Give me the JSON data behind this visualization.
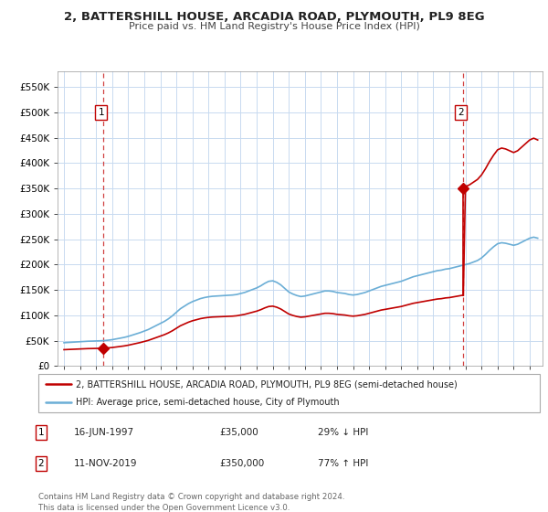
{
  "title": "2, BATTERSHILL HOUSE, ARCADIA ROAD, PLYMOUTH, PL9 8EG",
  "subtitle": "Price paid vs. HM Land Registry's House Price Index (HPI)",
  "background_color": "#ffffff",
  "plot_bg_color": "#ffffff",
  "grid_color": "#c8daf0",
  "ylabel_values": [
    "£0",
    "£50K",
    "£100K",
    "£150K",
    "£200K",
    "£250K",
    "£300K",
    "£350K",
    "£400K",
    "£450K",
    "£500K",
    "£550K"
  ],
  "yticks": [
    0,
    50000,
    100000,
    150000,
    200000,
    250000,
    300000,
    350000,
    400000,
    450000,
    500000,
    550000
  ],
  "ylim": [
    0,
    580000
  ],
  "xlim_start": 1994.6,
  "xlim_end": 2024.8,
  "xticks": [
    1995,
    1996,
    1997,
    1998,
    1999,
    2000,
    2001,
    2002,
    2003,
    2004,
    2005,
    2006,
    2007,
    2008,
    2009,
    2010,
    2011,
    2012,
    2013,
    2014,
    2015,
    2016,
    2017,
    2018,
    2019,
    2020,
    2021,
    2022,
    2023,
    2024
  ],
  "hpi_line_color": "#6baed6",
  "price_line_color": "#c00000",
  "dashed_vline_color": "#d04040",
  "transaction1_x": 1997.46,
  "transaction1_y": 35000,
  "transaction2_x": 2019.87,
  "transaction2_y": 350000,
  "legend_label1": "2, BATTERSHILL HOUSE, ARCADIA ROAD, PLYMOUTH, PL9 8EG (semi-detached house)",
  "legend_label2": "HPI: Average price, semi-detached house, City of Plymouth",
  "annotation1_label": "1",
  "annotation2_label": "2",
  "note1_index": "1",
  "note1_date": "16-JUN-1997",
  "note1_price": "£35,000",
  "note1_hpi": "29% ↓ HPI",
  "note2_index": "2",
  "note2_date": "11-NOV-2019",
  "note2_price": "£350,000",
  "note2_hpi": "77% ↑ HPI",
  "footer": "Contains HM Land Registry data © Crown copyright and database right 2024.\nThis data is licensed under the Open Government Licence v3.0.",
  "hpi_years": [
    1995.0,
    1995.25,
    1995.5,
    1995.75,
    1996.0,
    1996.25,
    1996.5,
    1996.75,
    1997.0,
    1997.25,
    1997.5,
    1997.75,
    1998.0,
    1998.25,
    1998.5,
    1998.75,
    1999.0,
    1999.25,
    1999.5,
    1999.75,
    2000.0,
    2000.25,
    2000.5,
    2000.75,
    2001.0,
    2001.25,
    2001.5,
    2001.75,
    2002.0,
    2002.25,
    2002.5,
    2002.75,
    2003.0,
    2003.25,
    2003.5,
    2003.75,
    2004.0,
    2004.25,
    2004.5,
    2004.75,
    2005.0,
    2005.25,
    2005.5,
    2005.75,
    2006.0,
    2006.25,
    2006.5,
    2006.75,
    2007.0,
    2007.25,
    2007.5,
    2007.75,
    2008.0,
    2008.25,
    2008.5,
    2008.75,
    2009.0,
    2009.25,
    2009.5,
    2009.75,
    2010.0,
    2010.25,
    2010.5,
    2010.75,
    2011.0,
    2011.25,
    2011.5,
    2011.75,
    2012.0,
    2012.25,
    2012.5,
    2012.75,
    2013.0,
    2013.25,
    2013.5,
    2013.75,
    2014.0,
    2014.25,
    2014.5,
    2014.75,
    2015.0,
    2015.25,
    2015.5,
    2015.75,
    2016.0,
    2016.25,
    2016.5,
    2016.75,
    2017.0,
    2017.25,
    2017.5,
    2017.75,
    2018.0,
    2018.25,
    2018.5,
    2018.75,
    2019.0,
    2019.25,
    2019.5,
    2019.75,
    2020.0,
    2020.25,
    2020.5,
    2020.75,
    2021.0,
    2021.25,
    2021.5,
    2021.75,
    2022.0,
    2022.25,
    2022.5,
    2022.75,
    2023.0,
    2023.25,
    2023.5,
    2023.75,
    2024.0,
    2024.25,
    2024.5
  ],
  "hpi_values": [
    46000,
    46500,
    47000,
    47500,
    48000,
    48500,
    49000,
    49200,
    49500,
    49800,
    50200,
    51000,
    52000,
    53500,
    55000,
    56500,
    58500,
    61000,
    63500,
    66000,
    69000,
    72000,
    76000,
    80000,
    84000,
    88000,
    93000,
    99000,
    106000,
    113000,
    118000,
    123000,
    127000,
    130000,
    133000,
    135000,
    136500,
    137500,
    138000,
    138500,
    139000,
    139500,
    140000,
    141000,
    143000,
    145000,
    148000,
    151000,
    154000,
    158000,
    163000,
    167000,
    168000,
    165000,
    160000,
    153000,
    146000,
    142000,
    139000,
    137000,
    138000,
    140000,
    142000,
    144000,
    146000,
    148000,
    148000,
    147000,
    145000,
    144000,
    143000,
    141000,
    140000,
    141000,
    143000,
    145000,
    148000,
    151000,
    154000,
    157000,
    159000,
    161000,
    163000,
    165000,
    167000,
    170000,
    173000,
    176000,
    178000,
    180000,
    182000,
    184000,
    186000,
    188000,
    189000,
    191000,
    192000,
    194000,
    196000,
    198000,
    200000,
    202000,
    205000,
    208000,
    213000,
    220000,
    228000,
    235000,
    241000,
    243000,
    242000,
    240000,
    238000,
    240000,
    244000,
    248000,
    252000,
    254000,
    252000
  ],
  "price_years_raw": [
    1995.0,
    1995.25,
    1995.5,
    1995.75,
    1996.0,
    1996.25,
    1996.5,
    1996.75,
    1997.0,
    1997.25,
    1997.46,
    1997.5,
    1997.75,
    1998.0,
    1998.25,
    1998.5,
    1998.75,
    1999.0,
    1999.25,
    1999.5,
    1999.75,
    2000.0,
    2000.25,
    2000.5,
    2000.75,
    2001.0,
    2001.25,
    2001.5,
    2001.75,
    2002.0,
    2002.25,
    2002.5,
    2002.75,
    2003.0,
    2003.25,
    2003.5,
    2003.75,
    2004.0,
    2004.25,
    2004.5,
    2004.75,
    2005.0,
    2005.25,
    2005.5,
    2005.75,
    2006.0,
    2006.25,
    2006.5,
    2006.75,
    2007.0,
    2007.25,
    2007.5,
    2007.75,
    2008.0,
    2008.25,
    2008.5,
    2008.75,
    2009.0,
    2009.25,
    2009.5,
    2009.75,
    2010.0,
    2010.25,
    2010.5,
    2010.75,
    2011.0,
    2011.25,
    2011.5,
    2011.75,
    2012.0,
    2012.25,
    2012.5,
    2012.75,
    2013.0,
    2013.25,
    2013.5,
    2013.75,
    2014.0,
    2014.25,
    2014.5,
    2014.75,
    2015.0,
    2015.25,
    2015.5,
    2015.75,
    2016.0,
    2016.25,
    2016.5,
    2016.75,
    2017.0,
    2017.25,
    2017.5,
    2017.75,
    2018.0,
    2018.25,
    2018.5,
    2018.75,
    2019.0,
    2019.25,
    2019.5,
    2019.75,
    2019.87,
    2020.0,
    2020.25,
    2020.5,
    2020.75,
    2021.0,
    2021.25,
    2021.5,
    2021.75,
    2022.0,
    2022.25,
    2022.5,
    2022.75,
    2023.0,
    2023.25,
    2023.5,
    2023.75,
    2024.0,
    2024.25,
    2024.5
  ]
}
